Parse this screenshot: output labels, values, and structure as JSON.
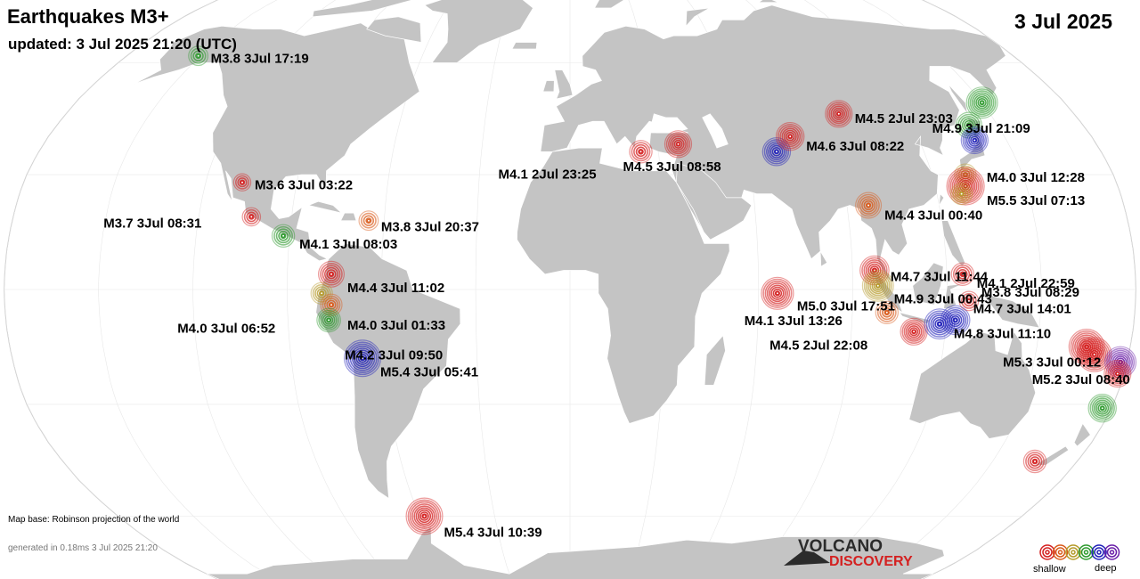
{
  "header": {
    "title": "Earthquakes M3+",
    "updated": "updated:  3 Jul 2025 21:20 (UTC)",
    "date": "3 Jul 2025"
  },
  "footer": {
    "map_base": "Map base: Robinson projection of the world",
    "generated": "generated in 0.18ms  3 Jul 2025 21:20"
  },
  "logo": {
    "line1": "VOLCANO",
    "line2": "DISCOVERY"
  },
  "legend": {
    "shallow_label": "shallow",
    "deep_label": "deep",
    "colors": [
      "#d42020",
      "#d95a1a",
      "#b59a2a",
      "#2e9a2e",
      "#2020b8",
      "#6a1fa8"
    ]
  },
  "depth_colors": {
    "red": "#d42020",
    "orange": "#d95a1a",
    "olive": "#b59a2a",
    "green": "#2e9a2e",
    "blue": "#2020b8",
    "purple": "#6a1fa8"
  },
  "quakes": [
    {
      "id": "alaska",
      "lon": -151,
      "lat": 62,
      "mag": 3.8,
      "color": "green",
      "label": "M3.8  3Jul 17:19"
    },
    {
      "id": "mexico-nw",
      "lon": -108,
      "lat": 28,
      "mag": 3.6,
      "color": "red",
      "label": "M3.6  3Jul 03:22"
    },
    {
      "id": "mexico-s",
      "lon": -103,
      "lat": 19,
      "mag": 3.7,
      "color": "red",
      "label": "M3.7  3Jul 08:31"
    },
    {
      "id": "guatemala",
      "lon": -92,
      "lat": 14,
      "mag": 4.1,
      "color": "green",
      "label": "M4.1  3Jul 08:03"
    },
    {
      "id": "caribbean",
      "lon": -65,
      "lat": 18,
      "mag": 3.8,
      "color": "orange",
      "label": "M3.8  3Jul 20:37"
    },
    {
      "id": "colombia",
      "lon": -76,
      "lat": 4,
      "mag": 4.4,
      "color": "red",
      "label": "M4.4  3Jul 11:02"
    },
    {
      "id": "ecuador",
      "lon": -79,
      "lat": -1,
      "mag": 4.0,
      "color": "olive",
      "label": "M4.0  3Jul 06:52"
    },
    {
      "id": "peru-n",
      "lon": -76,
      "lat": -4,
      "mag": 4.0,
      "color": "orange",
      "label": "M4.0  3Jul 01:33"
    },
    {
      "id": "peru-c",
      "lon": -77,
      "lat": -8,
      "mag": 4.2,
      "color": "green",
      "label": "M4.2  3Jul 09:50"
    },
    {
      "id": "bolivia",
      "lon": -67,
      "lat": -18,
      "mag": 5.4,
      "color": "blue",
      "label": "M5.4  3Jul 05:41"
    },
    {
      "id": "south-shetland",
      "lon": -58,
      "lat": -60,
      "mag": 5.4,
      "color": "red",
      "label": "M5.4  3Jul 10:39"
    },
    {
      "id": "greece",
      "lon": 24,
      "lat": 36,
      "mag": 4.1,
      "color": "red",
      "label": "M4.1  2Jul 23:25"
    },
    {
      "id": "turkey",
      "lon": 37,
      "lat": 38,
      "mag": 4.5,
      "color": "red",
      "label": "M4.5  3Jul 08:58"
    },
    {
      "id": "afghanistan",
      "lon": 70,
      "lat": 36,
      "mag": 4.6,
      "color": "blue",
      "label": ""
    },
    {
      "id": "tajikistan",
      "lon": 76,
      "lat": 40,
      "mag": 4.6,
      "color": "red",
      "label": "M4.6  3Jul 08:22"
    },
    {
      "id": "mongolia",
      "lon": 96,
      "lat": 46,
      "mag": 4.5,
      "color": "red",
      "label": "M4.5  2Jul 23:03"
    },
    {
      "id": "kuril",
      "lon": 150,
      "lat": 49,
      "mag": 4.9,
      "color": "green",
      "label": "M4.9  3Jul 21:09"
    },
    {
      "id": "japan-n",
      "lon": 140,
      "lat": 43,
      "mag": 4.4,
      "color": "green",
      "label": ""
    },
    {
      "id": "japan-c",
      "lon": 139,
      "lat": 39,
      "mag": 4.5,
      "color": "blue",
      "label": ""
    },
    {
      "id": "ryukyu-n",
      "lon": 131,
      "lat": 30,
      "mag": 4.0,
      "color": "olive",
      "label": "M4.0  3Jul 12:28"
    },
    {
      "id": "ryukyu",
      "lon": 130,
      "lat": 27,
      "mag": 5.5,
      "color": "red",
      "label": "M5.5  3Jul 07:13"
    },
    {
      "id": "taiwan",
      "lon": 128,
      "lat": 25,
      "mag": 4.0,
      "color": "olive",
      "label": ""
    },
    {
      "id": "myanmar-n",
      "lon": 97,
      "lat": 22,
      "mag": 4.4,
      "color": "orange",
      "label": "M4.4  3Jul 00:40"
    },
    {
      "id": "indian-ocean",
      "lon": 66,
      "lat": -1,
      "mag": 5.0,
      "color": "red",
      "label": "M5.0  3Jul 17:51"
    },
    {
      "id": "andaman",
      "lon": 97,
      "lat": 5,
      "mag": 4.7,
      "color": "red",
      "label": "M4.7  3Jul 11:44"
    },
    {
      "id": "sumatra-n",
      "lon": 98,
      "lat": 1,
      "mag": 4.9,
      "color": "olive",
      "label": "M4.9  3Jul 00:43"
    },
    {
      "id": "philippines",
      "lon": 125,
      "lat": 4,
      "mag": 4.1,
      "color": "red",
      "label": "M4.1  2Jul 22:59"
    },
    {
      "id": "sumatra-s",
      "lon": 101,
      "lat": -6,
      "mag": 4.1,
      "color": "orange",
      "label": "M4.1  3Jul 13:26"
    },
    {
      "id": "java",
      "lon": 110,
      "lat": -11,
      "mag": 4.5,
      "color": "red",
      "label": "M4.5  2Jul 22:08"
    },
    {
      "id": "sulawesi",
      "lon": 127,
      "lat": -3,
      "mag": 3.8,
      "color": "red",
      "label": "M3.8  3Jul 08:29"
    },
    {
      "id": "banda",
      "lon": 123,
      "lat": -8,
      "mag": 4.7,
      "color": "blue",
      "label": "M4.7  3Jul 14:01"
    },
    {
      "id": "flores",
      "lon": 118,
      "lat": -9,
      "mag": 4.8,
      "color": "blue",
      "label": "M4.8  3Jul 11:10"
    },
    {
      "id": "vanuatu-n",
      "lon": 166,
      "lat": -15,
      "mag": 5.3,
      "color": "red",
      "label": "M5.3  3Jul 00:12"
    },
    {
      "id": "vanuatu-s",
      "lon": 169,
      "lat": -17,
      "mag": 5.2,
      "color": "red",
      "label": "M5.2  3Jul 08:40"
    },
    {
      "id": "fiji-deep",
      "lon": 178,
      "lat": -19,
      "mag": 4.9,
      "color": "purple",
      "label": ""
    },
    {
      "id": "tonga",
      "lon": 178,
      "lat": -22,
      "mag": 4.5,
      "color": "red",
      "label": ""
    },
    {
      "id": "kermadec",
      "lon": 177,
      "lat": -31,
      "mag": 4.6,
      "color": "green",
      "label": ""
    },
    {
      "id": "new-zealand",
      "lon": 165,
      "lat": -45,
      "mag": 4.1,
      "color": "red",
      "label": ""
    }
  ]
}
